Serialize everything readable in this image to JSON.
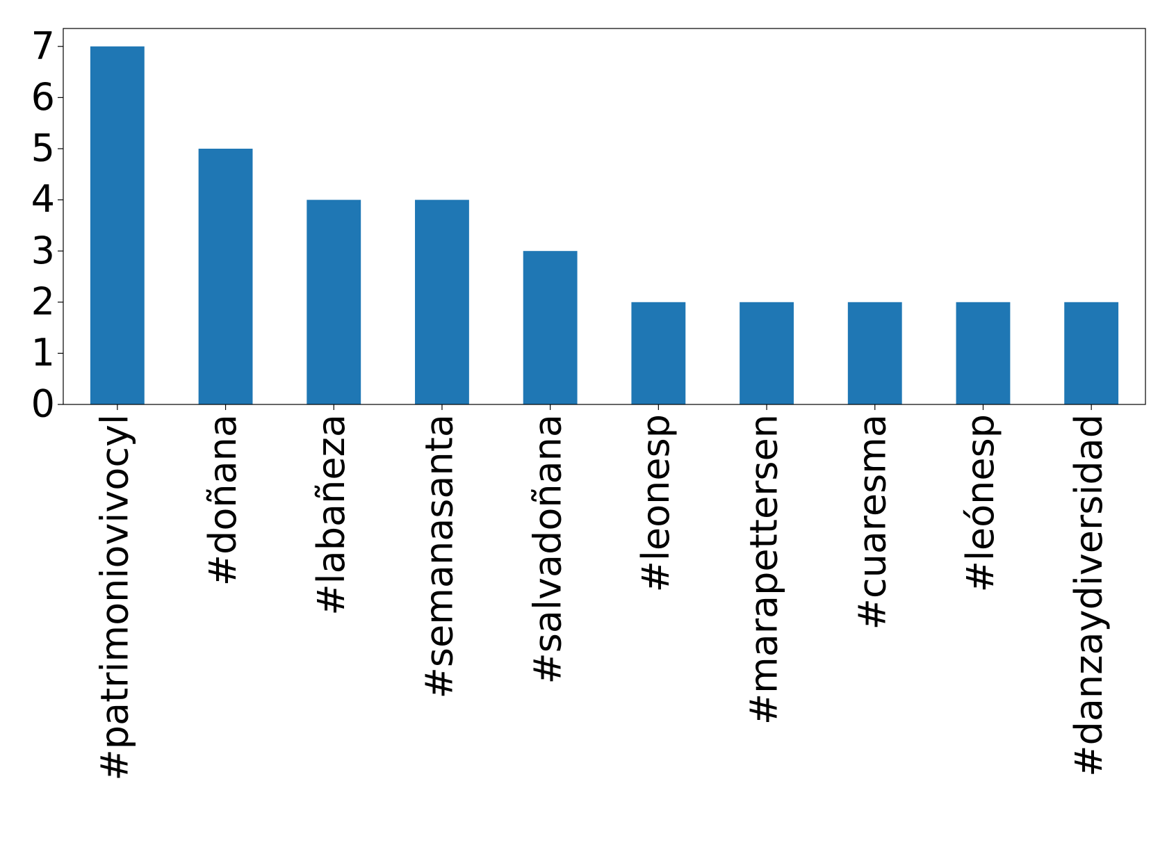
{
  "chart_data": {
    "type": "bar",
    "categories": [
      "#patrimoniovivocyl",
      "#doñana",
      "#labañeza",
      "#semanasanta",
      "#salvadoñana",
      "#leonesp",
      "#marapettersen",
      "#cuaresma",
      "#leónesp",
      "#danzaydiversidad"
    ],
    "values": [
      7,
      5,
      4,
      4,
      3,
      2,
      2,
      2,
      2,
      2
    ],
    "color": "#1f77b4",
    "ylim": [
      0,
      7.35
    ],
    "yticks": [
      0,
      1,
      2,
      3,
      4,
      5,
      6,
      7
    ],
    "grid": false
  }
}
